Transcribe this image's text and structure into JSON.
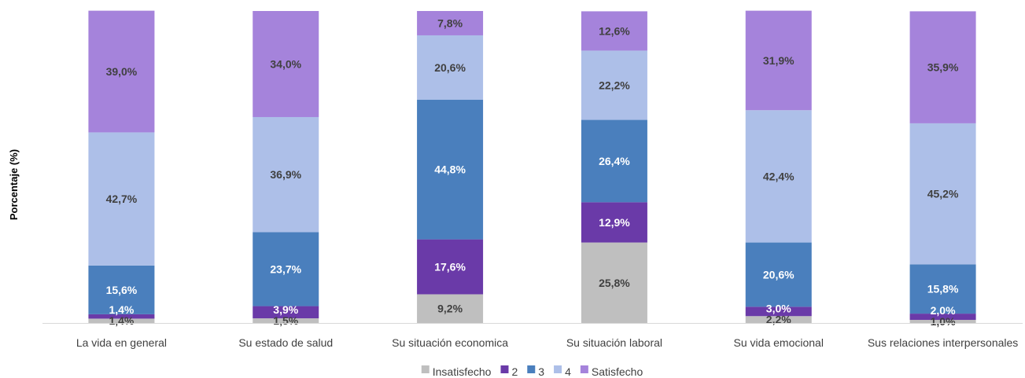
{
  "chart_data": {
    "type": "bar",
    "stacked": true,
    "title": "",
    "xlabel": "",
    "ylabel": "Porcentaje (%)",
    "ylim": [
      0,
      100
    ],
    "grid": false,
    "legend_position": "bottom",
    "categories": [
      "La vida en general",
      "Su estado de salud",
      "Su situación economica",
      "Su situación laboral",
      "Su vida emocional",
      "Sus relaciones interpersonales"
    ],
    "series": [
      {
        "name": "Insatisfecho",
        "color": "#bfbfbf",
        "label_color": "#404040",
        "values": [
          1.4,
          1.5,
          9.2,
          25.8,
          2.2,
          1.0
        ],
        "labels": [
          "1,4%",
          "1,5%",
          "9,2%",
          "25,8%",
          "2,2%",
          "1,0%"
        ]
      },
      {
        "name": "2",
        "color": "#6a3aa8",
        "label_color": "#ffffff",
        "values": [
          1.4,
          3.9,
          17.6,
          12.9,
          3.0,
          2.0
        ],
        "labels": [
          "1,4%",
          "3,9%",
          "17,6%",
          "12,9%",
          "3,0%",
          "2,0%"
        ]
      },
      {
        "name": "3",
        "color": "#4a7fbd",
        "label_color": "#ffffff",
        "values": [
          15.6,
          23.7,
          44.8,
          26.4,
          20.6,
          15.8
        ],
        "labels": [
          "15,6%",
          "23,7%",
          "44,8%",
          "26,4%",
          "20,6%",
          "15,8%"
        ]
      },
      {
        "name": "4",
        "color": "#adbfe8",
        "label_color": "#404040",
        "values": [
          42.7,
          36.9,
          20.6,
          22.2,
          42.4,
          45.2
        ],
        "labels": [
          "42,7%",
          "36,9%",
          "20,6%",
          "22,2%",
          "42,4%",
          "45,2%"
        ]
      },
      {
        "name": "Satisfecho",
        "color": "#a583db",
        "label_color": "#404040",
        "values": [
          39.0,
          34.0,
          7.8,
          12.6,
          31.9,
          35.9
        ],
        "labels": [
          "39,0%",
          "34,0%",
          "7,8%",
          "12,6%",
          "31,9%",
          "35,9%"
        ]
      }
    ]
  }
}
